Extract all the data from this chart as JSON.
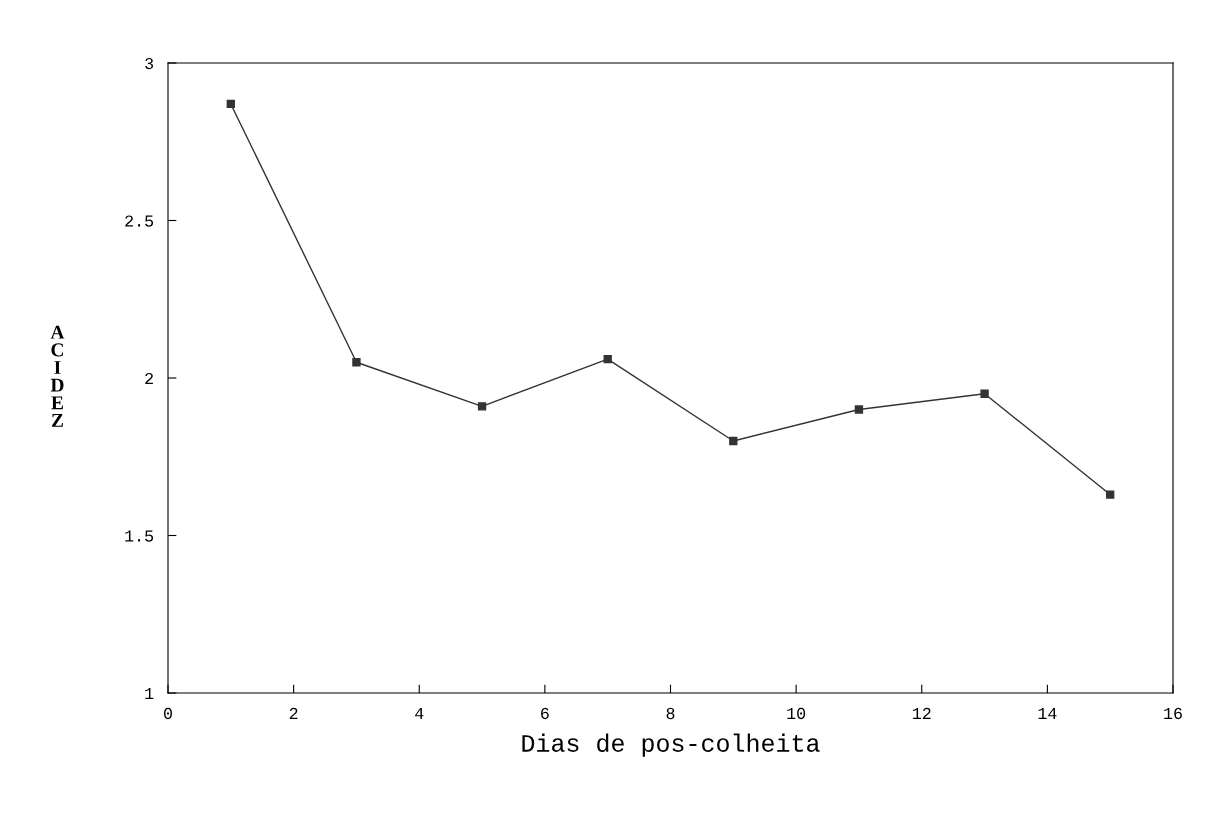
{
  "chart_data": {
    "type": "line",
    "xlabel": "Dias de pos-colheita",
    "ylabel": "ACIDEZ",
    "x": [
      1,
      3,
      5,
      7,
      9,
      11,
      13,
      15
    ],
    "series": [
      {
        "color": "#333333",
        "values": [
          2.87,
          2.05,
          1.91,
          2.06,
          1.8,
          1.9,
          1.95,
          1.63
        ]
      }
    ],
    "xlim": [
      0,
      16
    ],
    "xticks": [
      0,
      2,
      4,
      6,
      8,
      10,
      12,
      14,
      16
    ],
    "ylim": [
      1,
      3
    ],
    "yticks": [
      1,
      1.5,
      2,
      2.5,
      3
    ],
    "marker": "square",
    "line_style": "solid",
    "grid": false,
    "legend": false
  }
}
